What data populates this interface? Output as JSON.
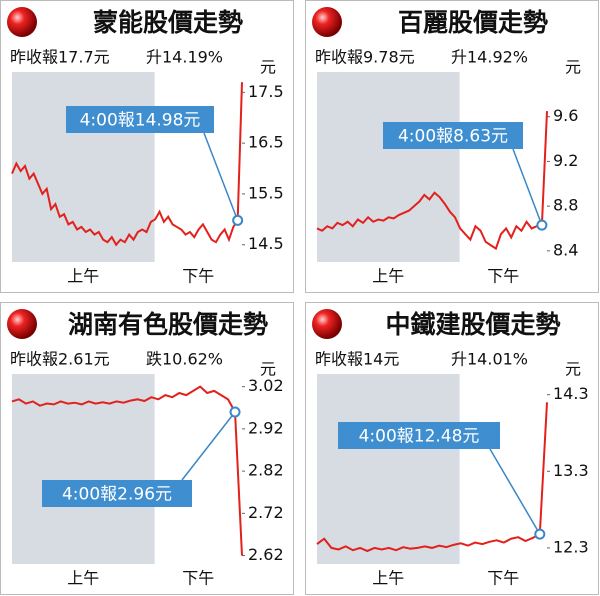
{
  "chart_data": [
    {
      "type": "line",
      "title": "蒙能股價走勢",
      "prev_close_label": "昨收報17.7元",
      "change_label": "升14.19%",
      "unit": "元",
      "session_labels": [
        "上午",
        "下午"
      ],
      "color": "#e3211c",
      "values": [
        15.9,
        16.1,
        15.95,
        16.05,
        15.8,
        15.9,
        15.7,
        15.5,
        15.6,
        15.2,
        15.3,
        15.05,
        15.1,
        14.9,
        14.95,
        14.8,
        14.85,
        14.75,
        14.8,
        14.7,
        14.75,
        14.6,
        14.55,
        14.65,
        14.5,
        14.6,
        14.55,
        14.7,
        14.6,
        14.75,
        14.8,
        14.75,
        14.95,
        15.0,
        15.15,
        14.95,
        15.05,
        14.9,
        14.85,
        14.8,
        14.7,
        14.75,
        14.65,
        14.8,
        14.9,
        14.75,
        14.6,
        14.55,
        14.7,
        14.8,
        14.6,
        14.85,
        14.98,
        17.7
      ],
      "annotation": {
        "text": "4:00報14.98元",
        "value": 14.98
      },
      "ylim": [
        14.16,
        17.9
      ],
      "yticks": [
        14.5,
        15.5,
        16.5,
        17.5
      ]
    },
    {
      "type": "line",
      "title": "百麗股價走勢",
      "prev_close_label": "昨收報9.78元",
      "change_label": "升14.92%",
      "unit": "元",
      "session_labels": [
        "上午",
        "下午"
      ],
      "color": "#e3211c",
      "values": [
        8.6,
        8.58,
        8.62,
        8.6,
        8.65,
        8.63,
        8.66,
        8.62,
        8.68,
        8.65,
        8.7,
        8.66,
        8.68,
        8.67,
        8.7,
        8.69,
        8.72,
        8.74,
        8.76,
        8.8,
        8.84,
        8.9,
        8.86,
        8.92,
        8.88,
        8.82,
        8.75,
        8.7,
        8.6,
        8.55,
        8.5,
        8.62,
        8.58,
        8.48,
        8.45,
        8.42,
        8.55,
        8.6,
        8.52,
        8.62,
        8.58,
        8.66,
        8.6,
        8.62,
        8.63,
        9.65
      ],
      "annotation": {
        "text": "4:00報8.63元",
        "value": 8.63
      },
      "ylim": [
        8.3,
        10.0
      ],
      "yticks": [
        8.4,
        8.8,
        9.2,
        9.6
      ]
    },
    {
      "type": "line",
      "title": "湖南有色股價走勢",
      "prev_close_label": "昨收報2.61元",
      "change_label": "跌10.62%",
      "unit": "元",
      "session_labels": [
        "上午",
        "下午"
      ],
      "color": "#e3211c",
      "values": [
        2.985,
        2.99,
        2.98,
        2.985,
        2.975,
        2.98,
        2.978,
        2.985,
        2.98,
        2.982,
        2.978,
        2.985,
        2.98,
        2.983,
        2.98,
        2.985,
        2.982,
        2.987,
        2.99,
        2.986,
        2.995,
        2.99,
        3.0,
        2.995,
        3.005,
        3.0,
        3.01,
        3.02,
        3.005,
        3.01,
        3.0,
        2.99,
        2.96,
        2.62
      ],
      "annotation": {
        "text": "4:00報2.96元",
        "value": 2.96
      },
      "ylim": [
        2.6,
        3.05
      ],
      "yticks": [
        2.62,
        2.72,
        2.82,
        2.92,
        3.02
      ]
    },
    {
      "type": "line",
      "title": "中鐵建股價走勢",
      "prev_close_label": "昨收報14元",
      "change_label": "升14.01%",
      "unit": "元",
      "session_labels": [
        "上午",
        "下午"
      ],
      "color": "#e3211c",
      "values": [
        12.35,
        12.42,
        12.3,
        12.28,
        12.32,
        12.27,
        12.3,
        12.26,
        12.3,
        12.28,
        12.3,
        12.27,
        12.31,
        12.29,
        12.3,
        12.32,
        12.3,
        12.33,
        12.31,
        12.34,
        12.36,
        12.33,
        12.37,
        12.35,
        12.38,
        12.4,
        12.37,
        12.42,
        12.44,
        12.39,
        12.43,
        12.48,
        14.2
      ],
      "annotation": {
        "text": "4:00報12.48元",
        "value": 12.48
      },
      "ylim": [
        12.09,
        14.57
      ],
      "yticks": [
        12.3,
        13.3,
        14.3
      ]
    }
  ]
}
